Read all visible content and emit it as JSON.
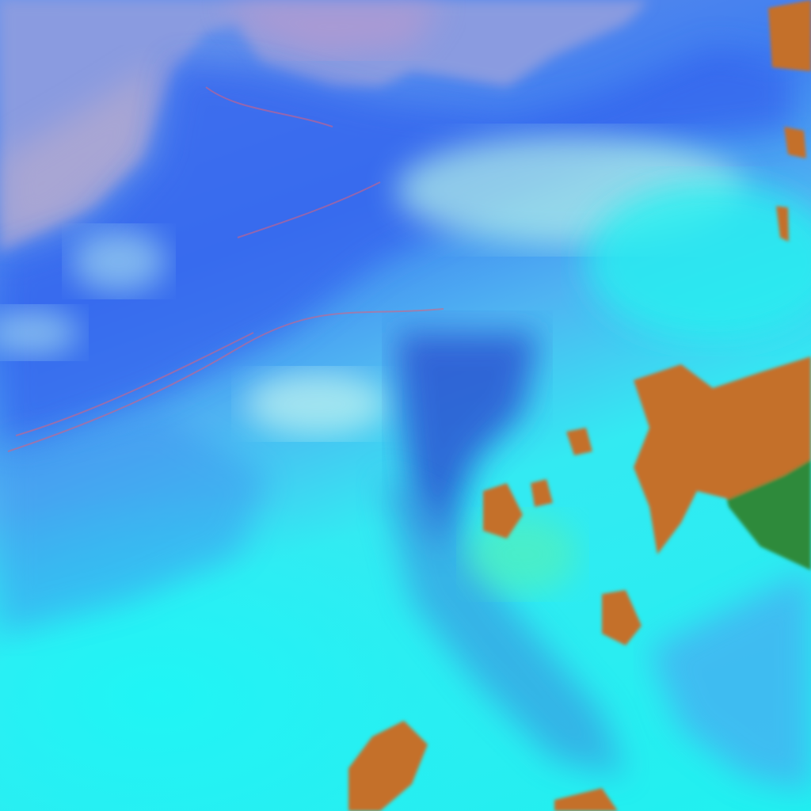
{
  "image": {
    "kind": "false-color satellite imagery",
    "colors": {
      "sea_haze": "#7f9ae6",
      "land_blue": "#3a6ff0",
      "cloud_cyan": "#22f0f0",
      "pale_cloud": "#a8f4ef",
      "dark_cloud": "#2a4fc8",
      "high_cloud_orange": "#c4702a",
      "cloud_edge_green": "#2f8a3a",
      "ridge_red": "#d8607a"
    }
  }
}
